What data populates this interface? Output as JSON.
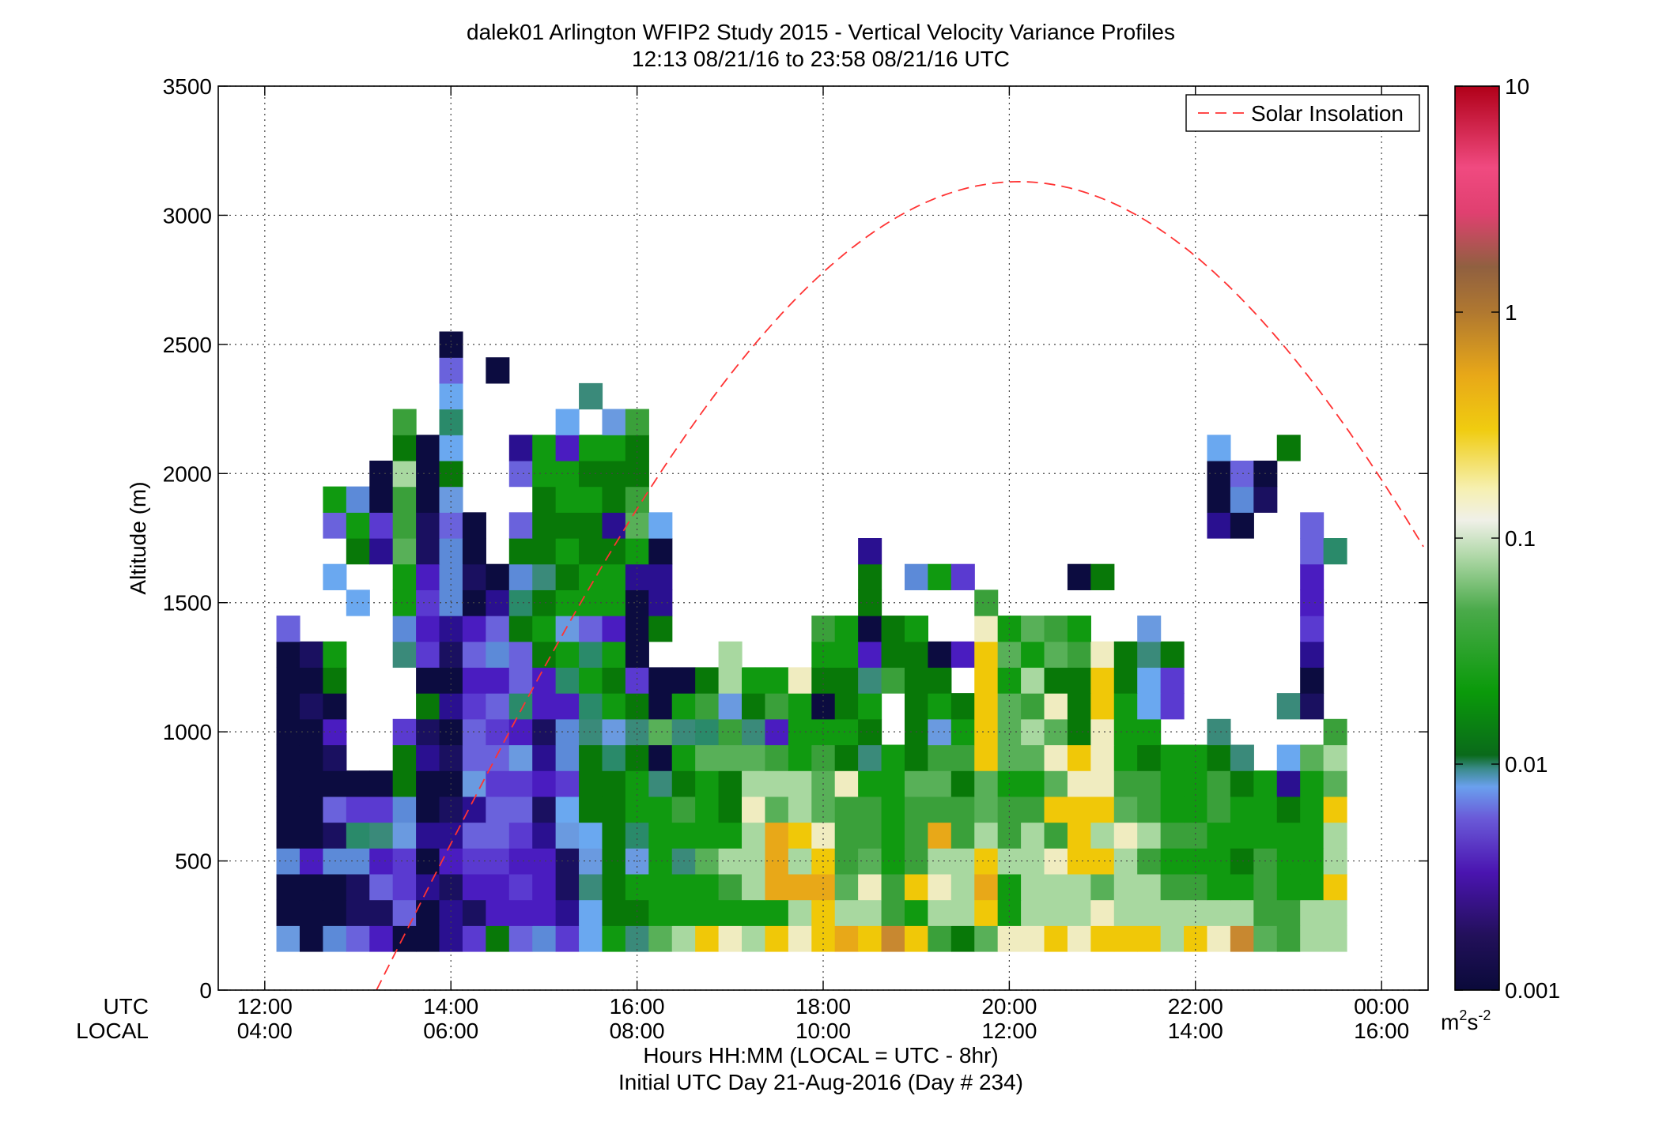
{
  "chart_data": {
    "type": "heatmap",
    "title_line1": "dalek01 Arlington WFIP2 Study 2015 - Vertical Velocity Variance Profiles",
    "title_line2": "12:13 08/21/16 to 23:58 08/21/16  UTC",
    "ylabel": "Altitude (m)",
    "ylim": [
      0,
      3500
    ],
    "y_ticks": [
      "0",
      "500",
      "1000",
      "1500",
      "2000",
      "2500",
      "3000",
      "3500"
    ],
    "x_range_hours_utc": [
      11.5,
      24.5
    ],
    "x_ticks_utc": [
      "12:00",
      "14:00",
      "16:00",
      "18:00",
      "20:00",
      "22:00",
      "00:00"
    ],
    "x_ticks_local": [
      "04:00",
      "06:00",
      "08:00",
      "10:00",
      "12:00",
      "14:00",
      "16:00"
    ],
    "x_row_label_utc": "UTC",
    "x_row_label_local": "LOCAL",
    "xlabel": "Hours HH:MM  (LOCAL = UTC - 8hr)",
    "xlabel2": "Initial UTC Day 21-Aug-2016 (Day # 234)",
    "grid": true,
    "legend": {
      "placement": "top-right",
      "entries": [
        "Solar Insolation"
      ]
    },
    "colorbar": {
      "scale": "log",
      "range": [
        0.001,
        10
      ],
      "tick_labels": [
        "10",
        "1",
        "0.1",
        "0.01",
        "0.001"
      ],
      "tick_values": [
        10,
        1,
        0.1,
        0.01,
        0.001
      ],
      "units_base": "m",
      "units_sup1": "2",
      "units_mid": "s",
      "units_sup2": "-2"
    },
    "colors": {
      "solar_curve": "#ff3333",
      "frame": "#000000",
      "grid": "#444444"
    },
    "heatmap": {
      "x_start_hours_utc": 12.25,
      "x_step_hours": 0.25,
      "y_bottom_m": 200,
      "y_step_m": 100,
      "note_levels": "1 = lowest variance (dark navy) ... 20 = yellow/orange; 0 = no data",
      "rows": [
        "9 1 7 6 4 1 1 3 5 12 6 7 5 8 13 11 15 16 18 17 16 18 17 18 19 18 20 18 14 12 15 17 17 18 17 18 18 18 16 18 17 20 15 14 16 16",
        "1 1 1 2 2 6 1 3 2 4 4 4 3 8 12 12 13 13 13 13 13 13 16 18 16 16 14 13 16 16 18 13 16 16 16 17 16 16 16 16 16 16 14 14 16 16",
        "1 1 1 2 6 5 3 2 4 4 5 4 2 11 12 13 13 13 13 14 16 19 19 19 15 17 14 18 17 16 19 13 16 16 16 15 16 16 14 14 13 13 14 13 13 18",
        "7 4 7 7 4 5 1 4 5 5 4 4 2 9 12 9 13 11 15 16 16 19 16 18 14 15 13 14 16 16 18 16 16 17 18 18 16 14 13 13 13 12 14 13 13 16",
        "1 1 2 10 11 9 3 3 6 6 5 3 9 8 12 10 13 13 13 13 16 19 18 17 14 14 13 14 19 14 16 14 16 14 18 16 17 16 14 14 13 13 13 13 13 16",
        "1 1 6 5 5 7 1 2 3 6 6 2 8 12 12 13 13 14 13 12 17 15 16 15 14 14 13 14 14 14 15 14 14 18 18 18 15 14 13 13 14 13 13 12 13 18",
        "1 1 1 1 1 12 1 1 9 5 5 4 5 12 12 13 11 12 13 12 16 16 16 15 17 13 13 15 15 12 15 13 13 15 17 17 14 14 13 13 14 12 13 3 13 15",
        "1 1 2 0 0 12 3 2 6 6 9 3 7 12 10 12 1 13 15 15 15 14 13 14 12 11 13 12 14 14 18 15 15 17 18 17 13 12 13 13 12 11 0 8 15 16",
        "1 1 4 0 0 5 2 1 6 5 4 2 7 11 9 11 15 11 10 14 11 4 13 13 13 12 0 12 9 13 18 15 16 15 12 17 13 13 0 0 11 0 0 0 0 14",
        "1 2 1 0 0 0 12 3 5 6 10 4 4 10 13 12 1 13 14 9 12 14 13 1 12 13 0 12 13 12 18 15 14 17 12 18 13 8 5 0 0 0 0 11 2 0",
        "1 1 12 0 0 0 1 1 4 4 6 4 10 13 12 5 1 1 12 16 13 13 17 12 12 11 14 12 12 0 18 13 16 12 12 18 12 8 5 0 0 0 0 0 1 0",
        "1 2 13 0 0 11 5 2 6 7 6 12 13 10 13 1 0 0 0 16 0 0 0 13 13 4 12 12 1 4 18 15 13 15 14 17 12 11 12 0 0 0 0 0 3 0",
        "6 0 0 0 0 7 4 3 4 6 12 13 9 6 4 1 12 0 0 0 0 0 0 14 13 1 12 13 0 0 17 13 15 14 13 0 0 9 0 0 0 0 0 0 5 0",
        "0 0 0 8 0 13 5 7 1 3 10 12 13 13 13 1 3 0 0 0 0 0 0 0 0 12 0 0 0 0 14 0 0 0 0 0 0 0 0 0 0 0 0 0 4 0"
      ],
      "upper_rows": [
        "0 0 8 0 0 13 4 7 2 1 7 11 12 13 13 3 3 0 0 0 0 0 0 0 0 12 0 7 13 5 0 0 0 0 1 12 0 0 0 0 0 0 0 0 4 0",
        "0 0 0 12 3 15 2 7 1 0 12 12 13 12 12 13 1 0 0 0 0 0 0 0 0 3 0 0 0 0 0 0 0 0 0 0 0 0 0 0 0 0 0 0 6 10",
        "0 0 6 13 5 14 2 6 1 0 6 12 12 12 3 15 8 0 0 0 0 0 0 0 0 0 0 0 0 0 0 0 0 0 0 0 0 0 0 0 3 1 0 0 6 0",
        "0 0 13 7 1 14 1 9 0 0 0 12 13 13 12 14 0 0 0 0 0 0 0 0 0 0 0 0 0 0 0 0 0 0 0 0 0 0 0 0 1 7 2 0 0 0",
        "0 0 0 0 1 16 1 12 0 0 6 13 13 12 12 12 0 0 0 0 0 0 0 0 0 0 0 0 0 0 0 0 0 0 0 0 0 0 0 0 1 6 1 0 0 0",
        "0 0 0 0 0 12 1 8 0 0 3 13 4 13 13 12 0 0 0 0 0 0 0 0 0 0 0 0 0 0 0 0 0 0 0 0 0 0 0 0 8 0 0 12 0 0",
        "0 0 0 0 0 14 0 10 0 0 0 0 8 0 9 14 0 0 0 0 0 0 0 0 0 0 0 0 0 0 0 0 0 0 0 0 0 0 0 0 0 0 0 0 0 0",
        "0 0 0 0 0 0 0 8 0 0 0 0 0 11 0 0 0 0 0 0 0 0 0 0 0 0 0 0 0 0 0 0 0 0 0 0 0 0 0 0 0 0 0 0 0 0",
        "0 0 0 0 0 0 0 6 0 1 0 0 0 0 0 0 0 0 0 0 0 0 0 0 0 0 0 0 0 0 0 0 0 0 0 0 0 0 0 0 0 0 0 0 0 0",
        "0 0 0 0 0 0 0 1 0 0 0 0 0 0 0 0 0 0 0 0 0 0 0 0 0 0 0 0 0 0 0 0 0 0 0 0 0 0 0 0 0 0 0 0 0 0"
      ]
    },
    "solar_insolation": {
      "peak_hours_utc": 20.1,
      "peak_altitude_m": 3130,
      "zero_hours_utc": 13.2
    }
  }
}
